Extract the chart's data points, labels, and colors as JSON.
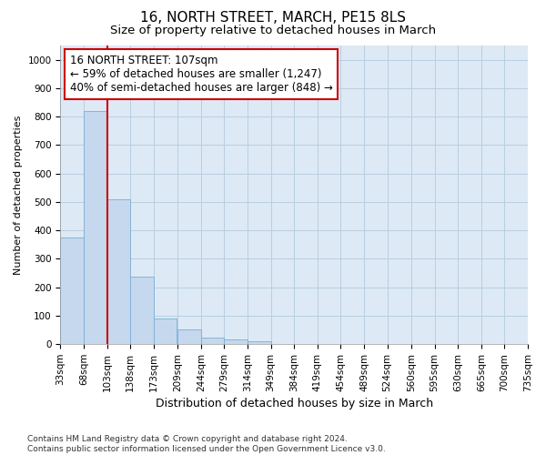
{
  "title": "16, NORTH STREET, MARCH, PE15 8LS",
  "subtitle": "Size of property relative to detached houses in March",
  "xlabel": "Distribution of detached houses by size in March",
  "ylabel": "Number of detached properties",
  "bar_color": "#c5d8ee",
  "bar_edge_color": "#7aafd4",
  "background_color": "#dde9f5",
  "grid_color": "#b8cfe0",
  "property_line_x": 103,
  "property_line_color": "#cc0000",
  "annotation_text": "16 NORTH STREET: 107sqm\n← 59% of detached houses are smaller (1,247)\n40% of semi-detached houses are larger (848) →",
  "annotation_box_color": "#ffffff",
  "annotation_box_edge_color": "#cc0000",
  "bin_edges": [
    33,
    68,
    103,
    138,
    173,
    209,
    244,
    279,
    314,
    349,
    384,
    419,
    454,
    489,
    524,
    560,
    595,
    630,
    665,
    700,
    735
  ],
  "bar_heights": [
    375,
    820,
    510,
    237,
    90,
    53,
    22,
    18,
    10,
    0,
    0,
    0,
    0,
    0,
    0,
    0,
    0,
    0,
    0,
    0
  ],
  "ylim": [
    0,
    1050
  ],
  "yticks": [
    0,
    100,
    200,
    300,
    400,
    500,
    600,
    700,
    800,
    900,
    1000
  ],
  "footnote": "Contains HM Land Registry data © Crown copyright and database right 2024.\nContains public sector information licensed under the Open Government Licence v3.0.",
  "title_fontsize": 11,
  "subtitle_fontsize": 9.5,
  "xlabel_fontsize": 9,
  "ylabel_fontsize": 8,
  "tick_fontsize": 7.5,
  "annotation_fontsize": 8.5,
  "footnote_fontsize": 6.5
}
